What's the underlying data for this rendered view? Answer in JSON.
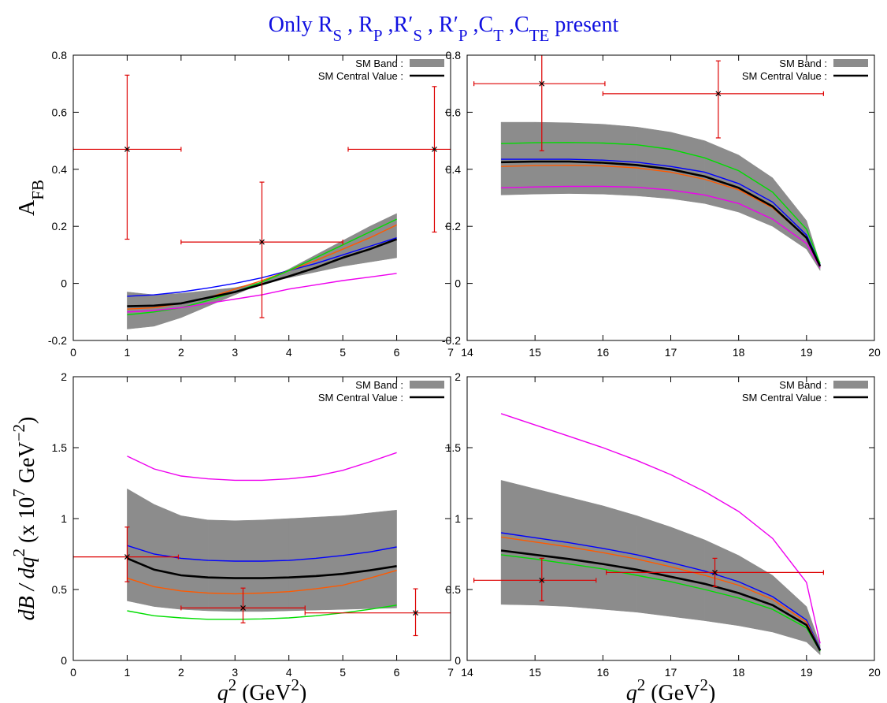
{
  "title": [
    {
      "text": "Only R"
    },
    {
      "text": "S",
      "shift": "sub"
    },
    {
      "text": " , R"
    },
    {
      "text": "P",
      "shift": "sub"
    },
    {
      "text": " ,R′"
    },
    {
      "text": "S",
      "shift": "sub"
    },
    {
      "text": " , R′"
    },
    {
      "text": "P",
      "shift": "sub"
    },
    {
      "text": " ,C"
    },
    {
      "text": "T",
      "shift": "sub"
    },
    {
      "text": " ,C"
    },
    {
      "text": "TE",
      "shift": "sub"
    },
    {
      "text": " present"
    }
  ],
  "title_color": "#1010e0",
  "chart_data": [
    {
      "type": "line",
      "legend": "top-right",
      "ylabel": [
        {
          "text": "A"
        },
        {
          "text": "FB",
          "shift": "sub"
        }
      ],
      "xlim": [
        0,
        7
      ],
      "xticks": [
        0,
        1,
        2,
        3,
        4,
        5,
        6,
        7
      ],
      "ylim": [
        -0.2,
        0.8
      ],
      "yticks": [
        -0.2,
        0,
        0.2,
        0.4,
        0.6,
        0.8
      ],
      "x": [
        1,
        1.5,
        2,
        2.5,
        3,
        3.5,
        4,
        4.5,
        5,
        5.5,
        6
      ],
      "series": [
        {
          "name": "SM Band :",
          "color": "#8c8c8c",
          "lower": [
            -0.16,
            -0.15,
            -0.12,
            -0.08,
            -0.04,
            0.0,
            0.02,
            0.04,
            0.06,
            0.075,
            0.09
          ],
          "upper": [
            -0.03,
            -0.04,
            -0.035,
            -0.025,
            -0.015,
            0.005,
            0.05,
            0.1,
            0.15,
            0.2,
            0.245
          ]
        },
        {
          "name": "SM Central Value :",
          "color": "#000000",
          "values": [
            -0.08,
            -0.078,
            -0.07,
            -0.05,
            -0.03,
            -0.003,
            0.025,
            0.055,
            0.09,
            0.12,
            0.155
          ]
        },
        {
          "color": "#0000ff",
          "values": [
            -0.045,
            -0.04,
            -0.03,
            -0.016,
            0.0,
            0.02,
            0.045,
            0.07,
            0.1,
            0.13,
            0.16
          ]
        },
        {
          "color": "#ff5a00",
          "values": [
            -0.09,
            -0.085,
            -0.07,
            -0.05,
            -0.02,
            0.01,
            0.045,
            0.08,
            0.12,
            0.16,
            0.205
          ]
        },
        {
          "color": "#00dd00",
          "values": [
            -0.11,
            -0.1,
            -0.085,
            -0.06,
            -0.03,
            0.005,
            0.045,
            0.09,
            0.135,
            0.18,
            0.225
          ]
        },
        {
          "color": "#ee00ee",
          "values": [
            -0.1,
            -0.095,
            -0.085,
            -0.07,
            -0.055,
            -0.04,
            -0.02,
            -0.005,
            0.01,
            0.022,
            0.035
          ]
        }
      ],
      "points": {
        "color": "#dd0000",
        "x": [
          1,
          3.5,
          6.7
        ],
        "y": [
          0.47,
          0.145,
          0.47
        ],
        "xmin": [
          0,
          2,
          5.1
        ],
        "xmax": [
          2,
          5,
          8.3
        ],
        "ymin": [
          0.155,
          -0.12,
          0.18
        ],
        "ymax": [
          0.73,
          0.355,
          0.69
        ]
      }
    },
    {
      "type": "line",
      "legend": "top-right",
      "xlim": [
        14,
        20
      ],
      "xticks": [
        14,
        15,
        16,
        17,
        18,
        19,
        20
      ],
      "ylim": [
        -0.2,
        0.8
      ],
      "yticks": [
        -0.2,
        0,
        0.2,
        0.4,
        0.6,
        0.8
      ],
      "x": [
        14.5,
        15,
        15.5,
        16,
        16.5,
        17,
        17.5,
        18,
        18.5,
        19,
        19.2
      ],
      "series": [
        {
          "name": "SM Band :",
          "color": "#8c8c8c",
          "lower": [
            0.31,
            0.313,
            0.315,
            0.313,
            0.307,
            0.297,
            0.28,
            0.25,
            0.2,
            0.12,
            0.045
          ],
          "upper": [
            0.565,
            0.565,
            0.563,
            0.558,
            0.548,
            0.53,
            0.5,
            0.45,
            0.37,
            0.22,
            0.07
          ]
        },
        {
          "name": "SM Central Value :",
          "color": "#000000",
          "values": [
            0.425,
            0.427,
            0.427,
            0.423,
            0.415,
            0.4,
            0.375,
            0.335,
            0.27,
            0.16,
            0.06
          ]
        },
        {
          "color": "#0000ff",
          "values": [
            0.435,
            0.435,
            0.435,
            0.432,
            0.425,
            0.41,
            0.39,
            0.35,
            0.285,
            0.17,
            0.065
          ]
        },
        {
          "color": "#ff5a00",
          "values": [
            0.41,
            0.413,
            0.414,
            0.412,
            0.405,
            0.39,
            0.365,
            0.328,
            0.265,
            0.16,
            0.06
          ]
        },
        {
          "color": "#00dd00",
          "values": [
            0.49,
            0.493,
            0.494,
            0.492,
            0.486,
            0.47,
            0.44,
            0.395,
            0.32,
            0.19,
            0.07
          ]
        },
        {
          "color": "#ee00ee",
          "values": [
            0.335,
            0.338,
            0.34,
            0.34,
            0.337,
            0.327,
            0.31,
            0.28,
            0.225,
            0.14,
            0.055
          ]
        }
      ],
      "points": {
        "color": "#dd0000",
        "x": [
          15.1,
          17.7
        ],
        "y": [
          0.7,
          0.665
        ],
        "xmin": [
          14.1,
          16
        ],
        "xmax": [
          16.03,
          19.25
        ],
        "ymin": [
          0.465,
          0.51
        ],
        "ymax": [
          0.935,
          0.78
        ]
      }
    },
    {
      "type": "line",
      "legend": "top-right",
      "ylabel": [
        {
          "text": "dB / dq",
          "style": "italic"
        },
        {
          "text": "2",
          "shift": "sup"
        },
        {
          "text": " (x 10"
        },
        {
          "text": "7",
          "shift": "sup"
        },
        {
          "text": " GeV"
        },
        {
          "text": "−2",
          "shift": "sup"
        },
        {
          "text": ")"
        }
      ],
      "xlabel": [
        {
          "text": "q",
          "style": "italic"
        },
        {
          "text": "2",
          "shift": "sup"
        },
        {
          "text": " (GeV"
        },
        {
          "text": "2",
          "shift": "sup"
        },
        {
          "text": ")"
        }
      ],
      "xlim": [
        0,
        7
      ],
      "xticks": [
        0,
        1,
        2,
        3,
        4,
        5,
        6,
        7
      ],
      "ylim": [
        0,
        2
      ],
      "yticks": [
        0,
        0.5,
        1,
        1.5,
        2
      ],
      "x": [
        1,
        1.5,
        2,
        2.5,
        3,
        3.5,
        4,
        4.5,
        5,
        5.5,
        6
      ],
      "series": [
        {
          "name": "SM Band :",
          "color": "#8c8c8c",
          "lower": [
            0.42,
            0.38,
            0.36,
            0.35,
            0.345,
            0.345,
            0.35,
            0.355,
            0.36,
            0.365,
            0.37
          ],
          "upper": [
            1.21,
            1.1,
            1.02,
            0.99,
            0.985,
            0.99,
            1.0,
            1.01,
            1.02,
            1.04,
            1.06
          ]
        },
        {
          "name": "SM Central Value :",
          "color": "#000000",
          "values": [
            0.72,
            0.64,
            0.6,
            0.585,
            0.58,
            0.58,
            0.585,
            0.595,
            0.61,
            0.635,
            0.665
          ]
        },
        {
          "color": "#0000ff",
          "values": [
            0.81,
            0.75,
            0.72,
            0.705,
            0.7,
            0.7,
            0.705,
            0.72,
            0.74,
            0.765,
            0.8
          ]
        },
        {
          "color": "#ff5a00",
          "values": [
            0.58,
            0.52,
            0.49,
            0.475,
            0.47,
            0.475,
            0.485,
            0.505,
            0.53,
            0.58,
            0.635
          ]
        },
        {
          "color": "#00dd00",
          "values": [
            0.35,
            0.315,
            0.3,
            0.29,
            0.29,
            0.293,
            0.3,
            0.315,
            0.335,
            0.36,
            0.39
          ]
        },
        {
          "color": "#ee00ee",
          "values": [
            1.44,
            1.35,
            1.3,
            1.28,
            1.27,
            1.27,
            1.28,
            1.3,
            1.34,
            1.4,
            1.465
          ]
        }
      ],
      "points": {
        "color": "#dd0000",
        "x": [
          1,
          3.15,
          6.35
        ],
        "y": [
          0.73,
          0.37,
          0.335
        ],
        "xmin": [
          0,
          2,
          4.3
        ],
        "xmax": [
          1.95,
          4.3,
          8.4
        ],
        "ymin": [
          0.555,
          0.265,
          0.175
        ],
        "ymax": [
          0.94,
          0.51,
          0.505
        ]
      }
    },
    {
      "type": "line",
      "legend": "top-right",
      "xlabel": [
        {
          "text": "q",
          "style": "italic"
        },
        {
          "text": "2",
          "shift": "sup"
        },
        {
          "text": " (GeV"
        },
        {
          "text": "2",
          "shift": "sup"
        },
        {
          "text": ")"
        }
      ],
      "xlim": [
        14,
        20
      ],
      "xticks": [
        14,
        15,
        16,
        17,
        18,
        19,
        20
      ],
      "ylim": [
        0,
        2
      ],
      "yticks": [
        0,
        0.5,
        1,
        1.5,
        2
      ],
      "x": [
        14.5,
        15,
        15.5,
        16,
        16.5,
        17,
        17.5,
        18,
        18.5,
        19,
        19.2
      ],
      "series": [
        {
          "name": "SM Band :",
          "color": "#8c8c8c",
          "lower": [
            0.395,
            0.39,
            0.38,
            0.36,
            0.34,
            0.31,
            0.28,
            0.245,
            0.2,
            0.13,
            0.04
          ],
          "upper": [
            1.27,
            1.21,
            1.15,
            1.09,
            1.02,
            0.94,
            0.85,
            0.74,
            0.6,
            0.38,
            0.11
          ]
        },
        {
          "name": "SM Central Value :",
          "color": "#000000",
          "values": [
            0.775,
            0.745,
            0.715,
            0.68,
            0.64,
            0.59,
            0.54,
            0.475,
            0.39,
            0.25,
            0.07
          ]
        },
        {
          "color": "#0000ff",
          "values": [
            0.9,
            0.865,
            0.83,
            0.79,
            0.745,
            0.69,
            0.63,
            0.555,
            0.45,
            0.285,
            0.08
          ]
        },
        {
          "color": "#ff5a00",
          "values": [
            0.87,
            0.835,
            0.8,
            0.76,
            0.715,
            0.66,
            0.6,
            0.53,
            0.43,
            0.27,
            0.075
          ]
        },
        {
          "color": "#00dd00",
          "values": [
            0.745,
            0.715,
            0.68,
            0.645,
            0.6,
            0.555,
            0.5,
            0.44,
            0.36,
            0.23,
            0.065
          ]
        },
        {
          "color": "#ee00ee",
          "values": [
            1.74,
            1.66,
            1.58,
            1.5,
            1.41,
            1.31,
            1.19,
            1.05,
            0.86,
            0.55,
            0.12
          ]
        }
      ],
      "points": {
        "color": "#dd0000",
        "x": [
          15.1,
          17.65
        ],
        "y": [
          0.565,
          0.62
        ],
        "xmin": [
          14.1,
          16.05
        ],
        "xmax": [
          15.9,
          19.25
        ],
        "ymin": [
          0.42,
          0.52
        ],
        "ymax": [
          0.72,
          0.72
        ]
      }
    }
  ]
}
